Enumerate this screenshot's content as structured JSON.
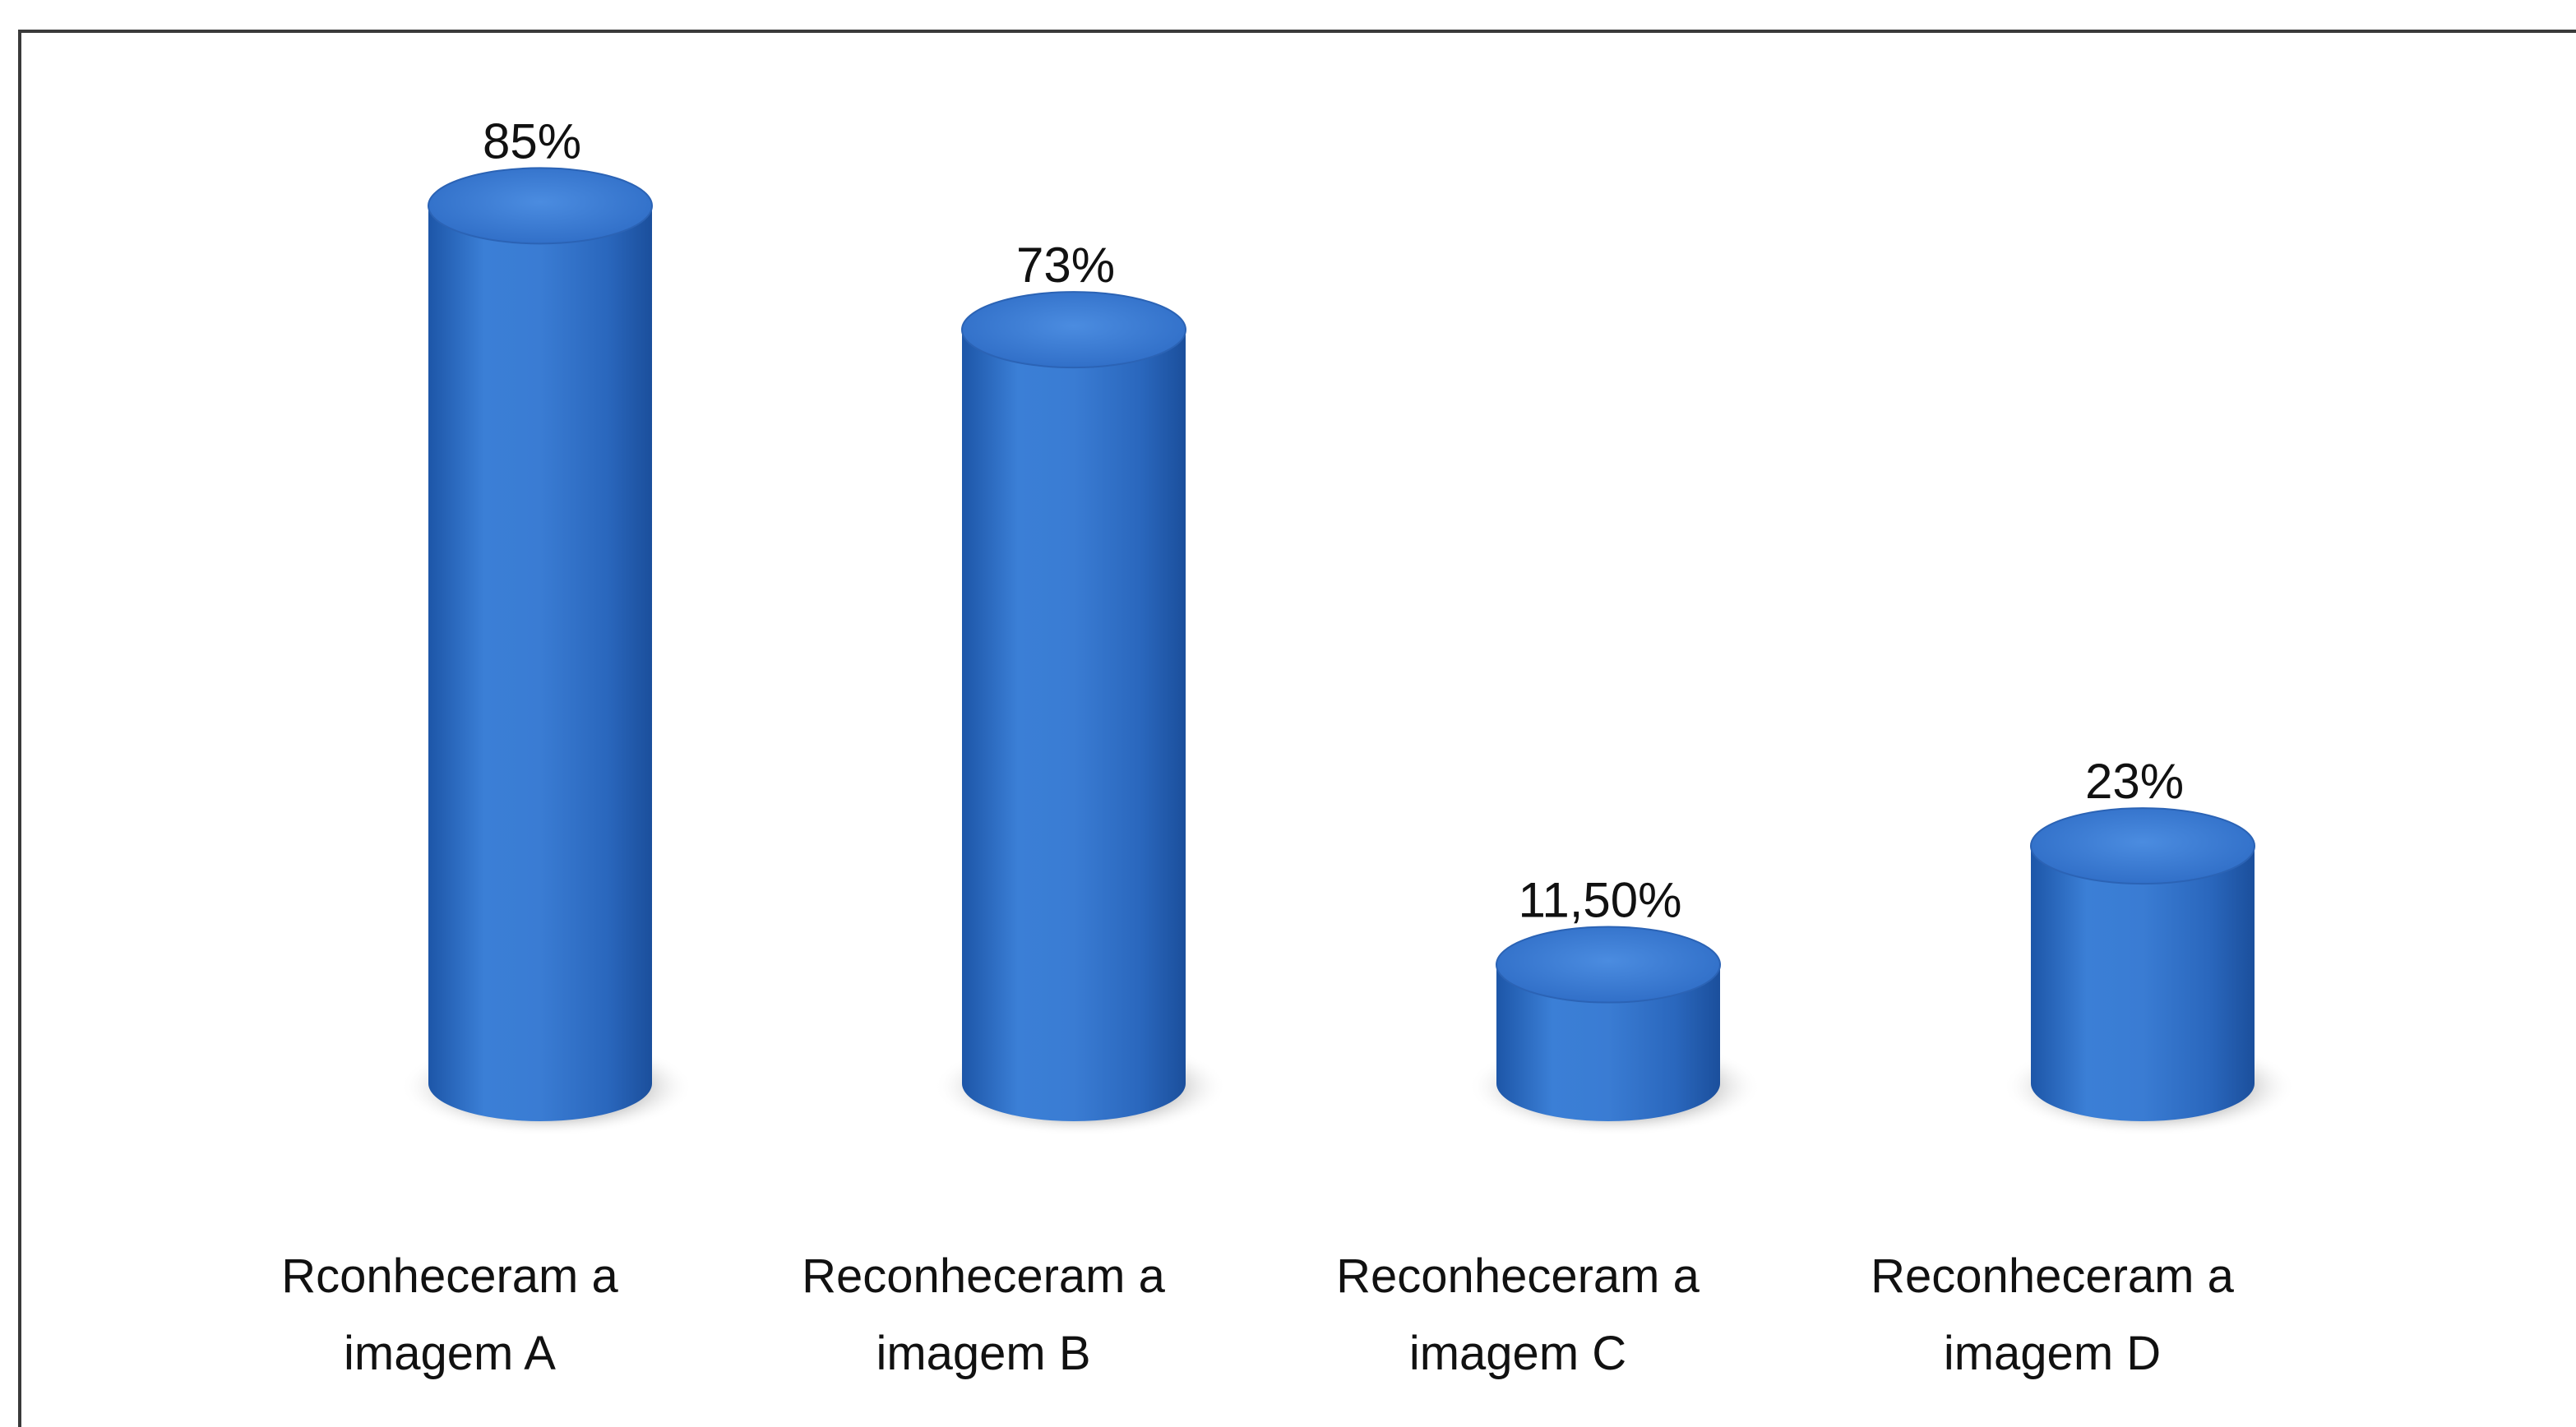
{
  "chart_data": {
    "type": "bar",
    "categories": [
      [
        "Rconheceram a",
        "imagem A"
      ],
      [
        "Reconheceram a",
        "imagem B"
      ],
      [
        "Reconheceram a",
        "imagem C"
      ],
      [
        "Reconheceram a",
        "imagem D"
      ]
    ],
    "values": [
      85,
      73,
      11.5,
      23
    ],
    "data_labels": [
      "85%",
      "73%",
      "11,50%",
      "23%"
    ],
    "ylim": [
      0,
      100
    ],
    "grid": false,
    "legend": "none",
    "bar_color": "#2e6ec9",
    "bar_shape": "cylinder"
  }
}
